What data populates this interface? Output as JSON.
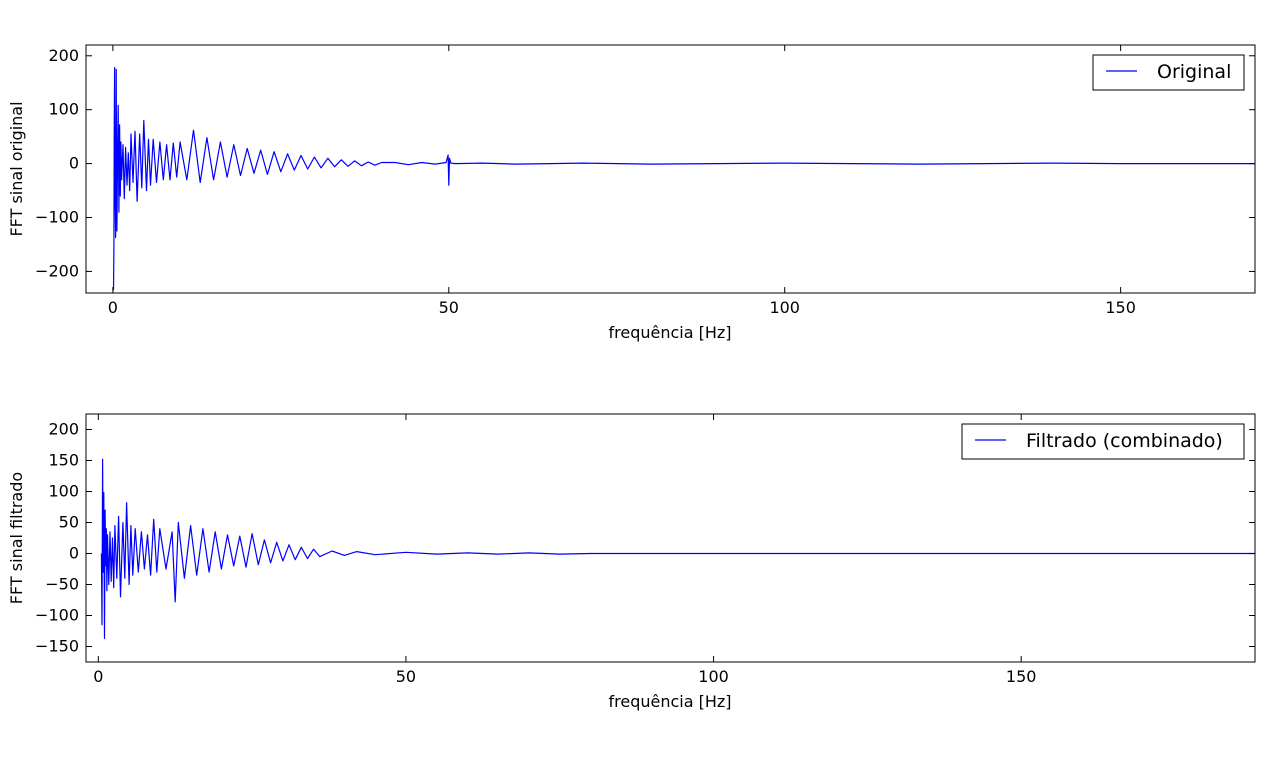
{
  "figure": {
    "background": "#ffffff",
    "line_color": "#0000ff"
  },
  "chart_data": [
    {
      "type": "line",
      "title": "",
      "xlabel": "frequência [Hz]",
      "ylabel": "FFT sinal original",
      "xlim": [
        -4,
        170
      ],
      "ylim": [
        -240,
        220
      ],
      "xticks": [
        0,
        50,
        100,
        150
      ],
      "xtick_labels": [
        "0",
        "50",
        "100",
        "150"
      ],
      "yticks": [
        -200,
        -100,
        0,
        100,
        200
      ],
      "ytick_labels": [
        "−200",
        "−100",
        "0",
        "100",
        "200"
      ],
      "grid": false,
      "legend_position": "top-right",
      "series": [
        {
          "name": "Original",
          "color": "#0000ff",
          "x": [
            0.1,
            0.15,
            0.2,
            0.25,
            0.3,
            0.4,
            0.5,
            0.6,
            0.7,
            0.8,
            0.9,
            1.0,
            1.1,
            1.2,
            1.3,
            1.5,
            1.7,
            1.9,
            2.1,
            2.3,
            2.5,
            2.7,
            3.0,
            3.3,
            3.6,
            4.0,
            4.3,
            4.6,
            5.0,
            5.3,
            5.6,
            6.0,
            6.5,
            7.0,
            7.5,
            8.0,
            8.5,
            9.0,
            9.5,
            10.0,
            11.0,
            12.0,
            13.0,
            14.0,
            15.0,
            16.0,
            17.0,
            18.0,
            19.0,
            20.0,
            21.0,
            22.0,
            23.0,
            24.0,
            25.0,
            26.0,
            27.0,
            28.0,
            29.0,
            30.0,
            31.0,
            32.0,
            33.0,
            34.0,
            35.0,
            36.0,
            37.0,
            38.0,
            39.0,
            40.0,
            42.0,
            44.0,
            46.0,
            48.0,
            49.6,
            49.9,
            50.0,
            50.1,
            50.3,
            51.0,
            55.0,
            60.0,
            70.0,
            80.0,
            90.0,
            100.0,
            110.0,
            120.0,
            130.0,
            140.0,
            150.0,
            160.0,
            170.0
          ],
          "y": [
            -235,
            -160,
            50,
            178,
            -30,
            -137,
            175,
            -125,
            20,
            108,
            -90,
            72,
            -60,
            40,
            -30,
            35,
            -65,
            30,
            -40,
            20,
            -50,
            55,
            -35,
            60,
            -70,
            55,
            -45,
            80,
            -50,
            45,
            -40,
            45,
            -35,
            40,
            -30,
            35,
            -30,
            38,
            -25,
            40,
            -30,
            62,
            -35,
            48,
            -30,
            40,
            -25,
            35,
            -22,
            28,
            -18,
            25,
            -20,
            22,
            -15,
            18,
            -12,
            15,
            -10,
            12,
            -8,
            10,
            -6,
            7,
            -5,
            5,
            -4,
            3,
            -3,
            2,
            2,
            -2,
            2,
            -1,
            2,
            16,
            -40,
            10,
            1,
            0,
            1,
            -1,
            1,
            -1,
            0,
            1,
            0,
            -1,
            0,
            1,
            0,
            0,
            0
          ]
        }
      ]
    },
    {
      "type": "line",
      "title": "",
      "xlabel": "frequência [Hz]",
      "ylabel": "FFT sinal filtrado",
      "xlim": [
        -2,
        188
      ],
      "ylim": [
        -175,
        225
      ],
      "xticks": [
        0,
        50,
        100,
        150
      ],
      "xtick_labels": [
        "0",
        "50",
        "100",
        "150"
      ],
      "yticks": [
        -150,
        -100,
        -50,
        0,
        50,
        100,
        150,
        200
      ],
      "ytick_labels": [
        "−150",
        "−100",
        "−50",
        "0",
        "50",
        "100",
        "150",
        "200"
      ],
      "grid": false,
      "legend_position": "top-right",
      "series": [
        {
          "name": "Filtrado (combinado)",
          "color": "#0000ff",
          "x": [
            0.5,
            0.6,
            0.7,
            0.8,
            0.9,
            1.0,
            1.1,
            1.2,
            1.3,
            1.4,
            1.5,
            1.7,
            1.9,
            2.1,
            2.3,
            2.5,
            2.7,
            3.0,
            3.3,
            3.6,
            4.0,
            4.3,
            4.6,
            5.0,
            5.3,
            5.6,
            6.0,
            6.5,
            7.0,
            7.5,
            8.0,
            8.5,
            9.0,
            9.5,
            10.0,
            11.0,
            12.0,
            12.5,
            13.0,
            14.0,
            15.0,
            16.0,
            17.0,
            18.0,
            19.0,
            20.0,
            21.0,
            22.0,
            23.0,
            24.0,
            25.0,
            26.0,
            27.0,
            28.0,
            29.0,
            30.0,
            31.0,
            32.0,
            33.0,
            34.0,
            35.0,
            36.0,
            38.0,
            40.0,
            42.0,
            45.0,
            50.0,
            55.0,
            60.0,
            65.0,
            70.0,
            75.0,
            80.0,
            90.0,
            100.0,
            120.0,
            140.0,
            160.0,
            188.0
          ],
          "y": [
            0,
            -115,
            152,
            -30,
            98,
            -137,
            70,
            -20,
            40,
            -60,
            30,
            -50,
            35,
            -45,
            25,
            -55,
            45,
            -40,
            60,
            -70,
            50,
            -40,
            82,
            -50,
            45,
            -35,
            40,
            -30,
            35,
            -25,
            30,
            -35,
            55,
            -30,
            40,
            -25,
            35,
            -78,
            50,
            -40,
            45,
            -35,
            40,
            -30,
            35,
            -25,
            30,
            -20,
            28,
            -22,
            32,
            -18,
            22,
            -15,
            18,
            -12,
            14,
            -10,
            10,
            -8,
            7,
            -5,
            4,
            -3,
            3,
            -2,
            2,
            -1,
            1,
            -1,
            1,
            -1,
            0,
            0,
            0,
            0,
            0,
            0,
            0
          ]
        }
      ]
    }
  ]
}
